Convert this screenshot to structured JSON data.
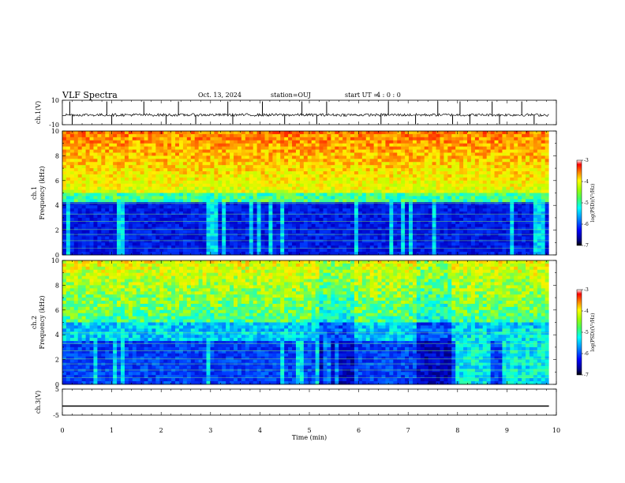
{
  "header": {
    "title": "VLF Spectra",
    "date": "Oct. 13, 2024",
    "station": "station=OUJ",
    "start_label": "start  UT =",
    "start_value": "4 : 0  : 0"
  },
  "chart_data": [
    {
      "type": "line",
      "panel": "ch1-waveform",
      "ylabel": "ch.1(V)",
      "ylim": [
        -10,
        10
      ],
      "yticks": [
        "10",
        "-10"
      ],
      "xlim": [
        0,
        10
      ],
      "baseline": -2,
      "spikes": [
        0.15,
        0.2,
        0.9,
        1.0,
        1.65,
        2.1,
        2.35,
        2.7,
        3.35,
        3.45,
        4.05,
        4.5,
        4.85,
        5.15,
        5.35,
        6.45,
        6.6,
        7.15,
        7.6,
        7.9,
        8.05,
        8.25,
        8.7,
        8.85,
        9.3,
        9.55
      ]
    },
    {
      "type": "heatmap",
      "panel": "ch1-spectrogram",
      "ylabel": "Frequency (kHz)",
      "channel_label": "ch.1",
      "ylim": [
        0,
        10
      ],
      "yticks": [
        "0",
        "2",
        "4",
        "6",
        "8",
        "10"
      ],
      "xlim": [
        0,
        10
      ],
      "data_end_min": 9.85,
      "colorbar": {
        "label": "log(PSD)(V²/Hz)",
        "range": [
          -7,
          -3
        ],
        "ticks": [
          "-3",
          "-4",
          "-5",
          "-6",
          "-7"
        ]
      }
    },
    {
      "type": "heatmap",
      "panel": "ch2-spectrogram",
      "ylabel": "Frequency (kHz)",
      "channel_label": "ch.2",
      "ylim": [
        0,
        10
      ],
      "yticks": [
        "0",
        "2",
        "4",
        "6",
        "8",
        "10"
      ],
      "xlim": [
        0,
        10
      ],
      "data_end_min": 9.85,
      "colorbar": {
        "label": "log(PSD)(V²/Hz)",
        "range": [
          -7,
          -3
        ],
        "ticks": [
          "-3",
          "-4",
          "-5",
          "-6",
          "-7"
        ]
      }
    },
    {
      "type": "line",
      "panel": "ch3-waveform",
      "ylabel": "ch.3(V)",
      "ylim": [
        -5,
        5
      ],
      "yticks": [
        "5",
        "-5"
      ],
      "xlim": [
        0,
        10
      ],
      "constant_value": -1.5,
      "xlabel": "Time (min)",
      "xticks": [
        "0",
        "1",
        "2",
        "3",
        "4",
        "5",
        "6",
        "7",
        "8",
        "9",
        "10"
      ]
    }
  ],
  "colors": {
    "jet": [
      "#000080",
      "#0000ff",
      "#0080ff",
      "#00ffff",
      "#80ff80",
      "#ffff00",
      "#ff8000",
      "#ff0000",
      "#800000"
    ]
  }
}
